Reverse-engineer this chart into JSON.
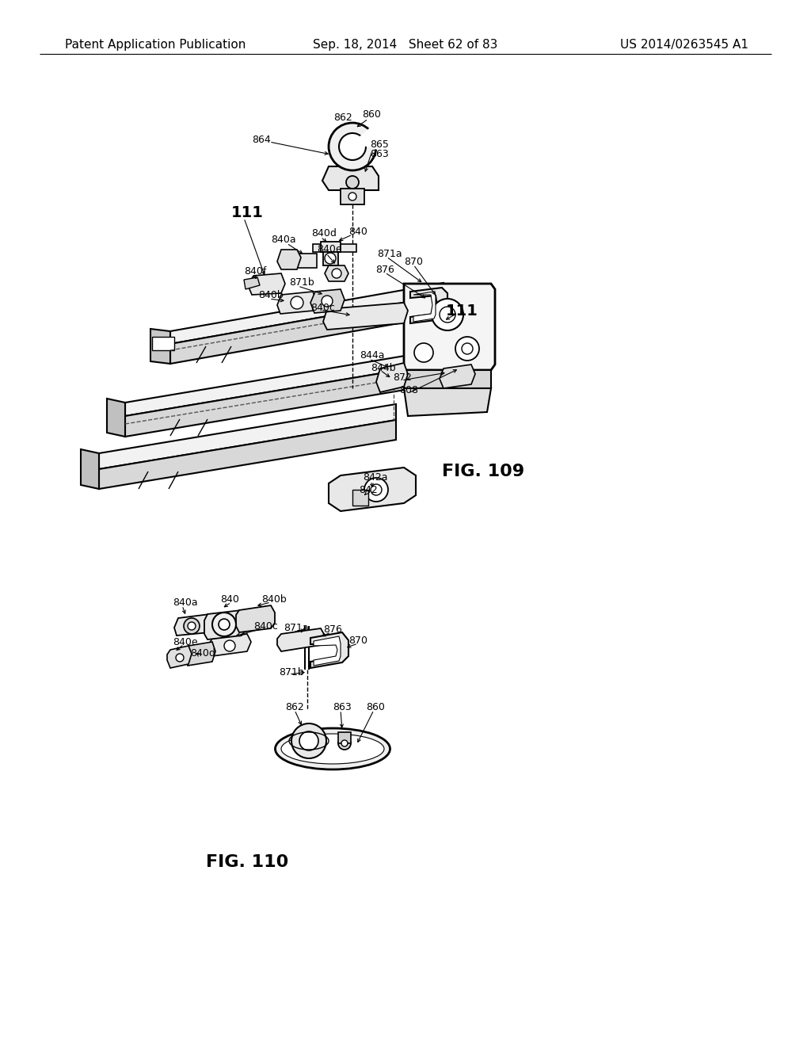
{
  "bg": "#ffffff",
  "header_left": "Patent Application Publication",
  "header_center": "Sep. 18, 2014   Sheet 62 of 83",
  "header_right": "US 2014/0263545 A1",
  "fig109_title": "FIG. 109",
  "fig110_title": "FIG. 110"
}
